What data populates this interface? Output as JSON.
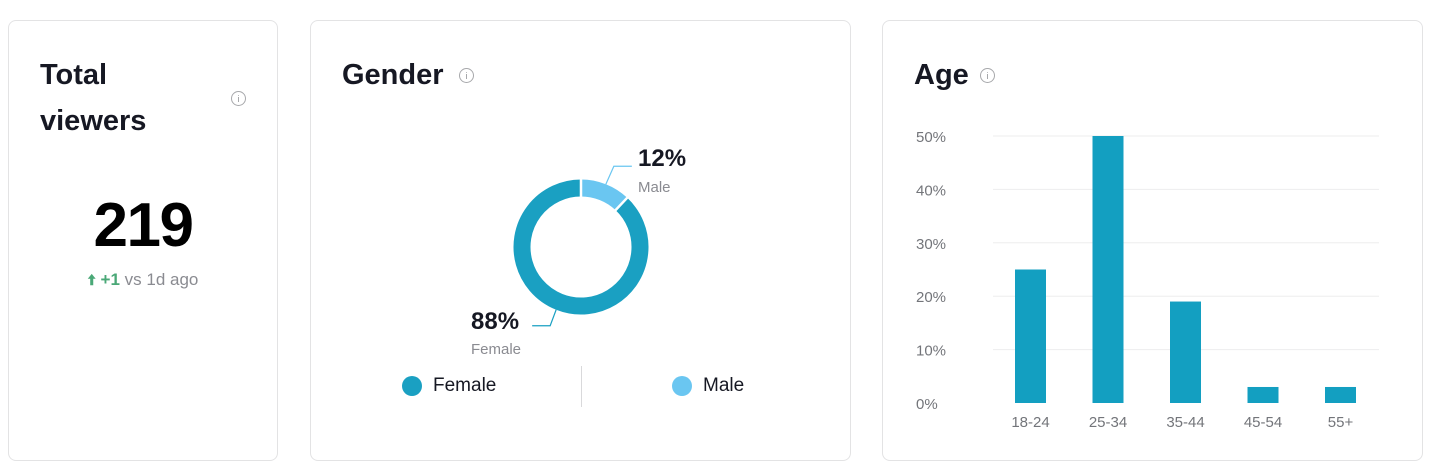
{
  "total_viewers": {
    "title": "Total viewers",
    "value": "219",
    "change_arrow": "arrow-up-icon",
    "change_delta": "+1",
    "change_ref": "vs 1d ago",
    "positive_color": "#4aa877"
  },
  "gender": {
    "title": "Gender",
    "legend": [
      {
        "label": "Female",
        "color": "#1aa0c2"
      },
      {
        "label": "Male",
        "color": "#6ac6f1"
      }
    ]
  },
  "age": {
    "title": "Age"
  },
  "chart_data": [
    {
      "type": "pie",
      "title": "Gender",
      "donut": true,
      "slices": [
        {
          "label": "Female",
          "value": 88,
          "display": "88%",
          "color": "#1aa0c2"
        },
        {
          "label": "Male",
          "value": 12,
          "display": "12%",
          "color": "#6ac6f1"
        }
      ],
      "legend_position": "bottom"
    },
    {
      "type": "bar",
      "title": "Age",
      "categories": [
        "18-24",
        "25-34",
        "35-44",
        "45-54",
        "55+"
      ],
      "values": [
        25,
        50,
        19,
        3,
        3
      ],
      "ylim": [
        0,
        50
      ],
      "yticks": [
        "0%",
        "10%",
        "20%",
        "30%",
        "40%",
        "50%"
      ],
      "ytick_values": [
        0,
        10,
        20,
        30,
        40,
        50
      ],
      "grid": true,
      "color": "#139fc1"
    }
  ]
}
